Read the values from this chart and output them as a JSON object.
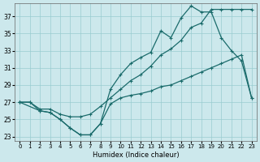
{
  "xlabel": "Humidex (Indice chaleur)",
  "bg_color": "#cce8ec",
  "grid_color": "#99ccd0",
  "line_color": "#1a6b6b",
  "xlim": [
    -0.5,
    23.5
  ],
  "ylim": [
    22.5,
    38.5
  ],
  "xticks": [
    0,
    1,
    2,
    3,
    4,
    5,
    6,
    7,
    8,
    9,
    10,
    11,
    12,
    13,
    14,
    15,
    16,
    17,
    18,
    19,
    20,
    21,
    22,
    23
  ],
  "yticks": [
    23,
    25,
    27,
    29,
    31,
    33,
    35,
    37
  ],
  "line_top_x": [
    0,
    1,
    2,
    3,
    4,
    5,
    6,
    7,
    8,
    9,
    10,
    11,
    12,
    13,
    14,
    15,
    16,
    17,
    18,
    19,
    20,
    21,
    22,
    23
  ],
  "line_top_y": [
    27,
    27,
    26.2,
    26.2,
    25.6,
    25.3,
    25.3,
    25.6,
    26.5,
    27.5,
    28.5,
    29.5,
    30.2,
    31.2,
    32.5,
    33.2,
    34.2,
    35.7,
    36.2,
    37.8,
    37.8,
    37.8,
    37.8,
    37.8
  ],
  "line_peak_x": [
    0,
    1,
    2,
    3,
    4,
    5,
    6,
    7,
    8,
    9,
    10,
    11,
    12,
    13,
    14,
    15,
    16,
    17,
    18,
    19,
    20,
    21,
    22,
    23
  ],
  "line_peak_y": [
    27,
    27,
    26.0,
    25.8,
    25.0,
    24.0,
    23.2,
    23.2,
    24.5,
    28.5,
    30.2,
    31.5,
    32.2,
    32.8,
    35.3,
    34.5,
    36.8,
    38.2,
    37.5,
    37.5,
    34.5,
    33.0,
    31.8,
    27.5
  ],
  "line_bot_x": [
    0,
    2,
    3,
    4,
    5,
    6,
    7,
    8,
    9,
    10,
    11,
    12,
    13,
    14,
    15,
    16,
    17,
    18,
    19,
    20,
    21,
    22,
    23
  ],
  "line_bot_y": [
    27,
    26.0,
    25.8,
    25.0,
    24.0,
    23.2,
    23.2,
    24.5,
    26.8,
    27.5,
    27.8,
    28.0,
    28.3,
    28.8,
    29.0,
    29.5,
    30.0,
    30.5,
    31.0,
    31.5,
    32.0,
    32.5,
    27.5
  ]
}
